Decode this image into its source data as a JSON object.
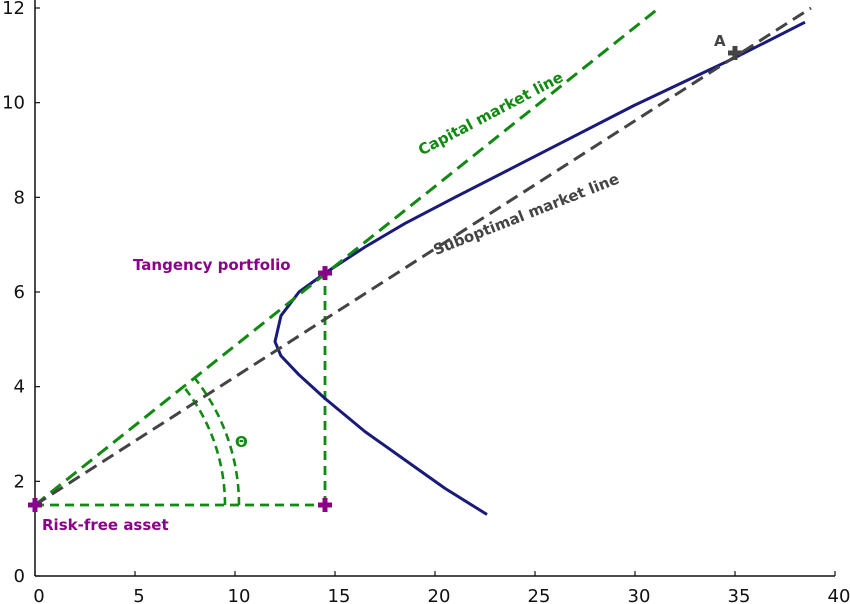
{
  "chart_data": {
    "type": "line",
    "title": "",
    "xlabel": "",
    "ylabel": "",
    "xlim": [
      0,
      40
    ],
    "ylim": [
      0,
      12
    ],
    "x_ticks": [
      0,
      5,
      10,
      15,
      20,
      25,
      30,
      35,
      40
    ],
    "y_ticks": [
      0,
      2,
      4,
      6,
      8,
      10,
      12
    ],
    "grid": false,
    "colors": {
      "frontier": "#1a1a7a",
      "capital_market_line": "#108a10",
      "suboptimal_market_line": "#444444",
      "points": "#8b008b",
      "point_a": "#444444",
      "axes": "#111111"
    },
    "series": [
      {
        "key": "frontier",
        "style": "solid",
        "x": [
          22.6,
          20.5,
          18.5,
          16.5,
          14.5,
          13.2,
          12.3,
          12.0,
          12.3,
          13.2,
          14.5,
          16.5,
          18.5,
          21,
          24,
          27,
          30,
          33,
          35,
          38.5
        ],
        "y": [
          1.3,
          1.85,
          2.45,
          3.05,
          3.75,
          4.25,
          4.65,
          4.95,
          5.5,
          6.0,
          6.4,
          6.95,
          7.45,
          8.0,
          8.65,
          9.3,
          9.95,
          10.55,
          10.95,
          11.7
        ]
      },
      {
        "key": "capital_market_line",
        "name": "Capital market line",
        "style": "dashed",
        "x": [
          0,
          31.2
        ],
        "y": [
          1.5,
          12.0
        ]
      },
      {
        "key": "suboptimal_market_line",
        "name": "Suboptimal market line",
        "style": "dashed",
        "x": [
          0,
          38.8
        ],
        "y": [
          1.5,
          12.0
        ]
      }
    ],
    "guides": [
      {
        "x": [
          0,
          14.5
        ],
        "y": [
          1.5,
          1.5
        ]
      },
      {
        "x": [
          14.5,
          14.5
        ],
        "y": [
          1.5,
          6.4
        ]
      }
    ],
    "arcs": [
      {
        "radius": 9.5
      },
      {
        "radius": 10.2
      }
    ],
    "points": [
      {
        "label": "Risk-free asset",
        "x": 0,
        "y": 1.5
      },
      {
        "label": "",
        "x": 14.5,
        "y": 1.5
      },
      {
        "label": "Tangency portfolio",
        "x": 14.5,
        "y": 6.4
      },
      {
        "label": "A",
        "x": 35,
        "y": 11.05
      }
    ],
    "annotations": {
      "capital_market_line": "Capital market line",
      "suboptimal_market_line": "Suboptimal market line",
      "tangency_portfolio": "Tangency portfolio",
      "risk_free_asset": "Risk-free asset",
      "point_a": "A",
      "theta": "Θ"
    }
  }
}
